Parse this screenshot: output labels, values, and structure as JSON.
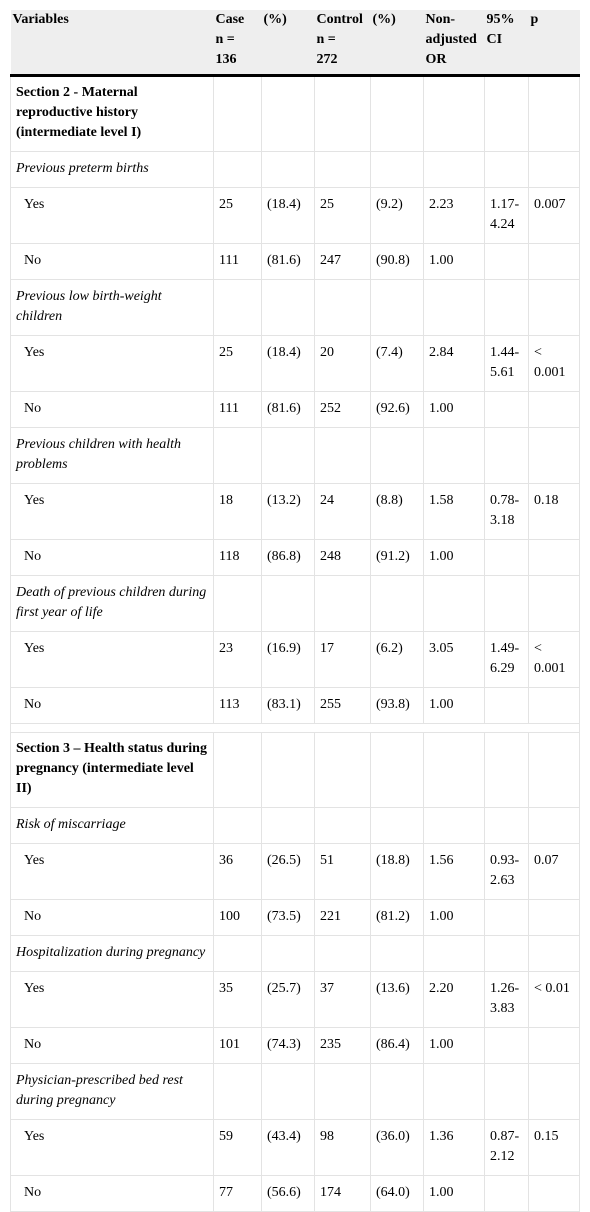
{
  "headers": [
    "Variables",
    "Case\nn =\n136",
    "(%)",
    "Control\nn =\n272",
    "(%)",
    "Non-\nadjusted\nOR",
    "95%\nCI",
    "p"
  ],
  "sections": [
    {
      "title": "Section 2 - Maternal reproductive history (intermediate level I)",
      "variables": [
        {
          "name": "Previous preterm births",
          "rows": [
            {
              "label": "Yes",
              "case": "25",
              "case_pct": "(18.4)",
              "control": "25",
              "control_pct": "(9.2)",
              "or": "2.23",
              "ci": "1.17-4.24",
              "p": "0.007"
            },
            {
              "label": "No",
              "case": "111",
              "case_pct": "(81.6)",
              "control": "247",
              "control_pct": "(90.8)",
              "or": "1.00",
              "ci": "",
              "p": ""
            }
          ]
        },
        {
          "name": "Previous low birth-weight children",
          "rows": [
            {
              "label": "Yes",
              "case": "25",
              "case_pct": "(18.4)",
              "control": "20",
              "control_pct": "(7.4)",
              "or": "2.84",
              "ci": "1.44-5.61",
              "p": "< 0.001"
            },
            {
              "label": "No",
              "case": "111",
              "case_pct": "(81.6)",
              "control": "252",
              "control_pct": "(92.6)",
              "or": "1.00",
              "ci": "",
              "p": ""
            }
          ]
        },
        {
          "name": "Previous children with health problems",
          "rows": [
            {
              "label": "Yes",
              "case": "18",
              "case_pct": "(13.2)",
              "control": "24",
              "control_pct": "(8.8)",
              "or": "1.58",
              "ci": "0.78-3.18",
              "p": "0.18"
            },
            {
              "label": "No",
              "case": "118",
              "case_pct": "(86.8)",
              "control": "248",
              "control_pct": "(91.2)",
              "or": "1.00",
              "ci": "",
              "p": ""
            }
          ]
        },
        {
          "name": "Death of previous children during first year of life",
          "rows": [
            {
              "label": "Yes",
              "case": "23",
              "case_pct": "(16.9)",
              "control": "17",
              "control_pct": "(6.2)",
              "or": "3.05",
              "ci": "1.49-6.29",
              "p": "< 0.001"
            },
            {
              "label": "No",
              "case": "113",
              "case_pct": "(83.1)",
              "control": "255",
              "control_pct": "(93.8)",
              "or": "1.00",
              "ci": "",
              "p": ""
            }
          ]
        }
      ]
    },
    {
      "title": "Section 3 – Health status during pregnancy (intermediate level II)",
      "variables": [
        {
          "name": "Risk of miscarriage",
          "rows": [
            {
              "label": "Yes",
              "case": "36",
              "case_pct": "(26.5)",
              "control": "51",
              "control_pct": "(18.8)",
              "or": "1.56",
              "ci": "0.93-2.63",
              "p": "0.07"
            },
            {
              "label": "No",
              "case": "100",
              "case_pct": "(73.5)",
              "control": "221",
              "control_pct": "(81.2)",
              "or": "1.00",
              "ci": "",
              "p": ""
            }
          ]
        },
        {
          "name": "Hospitalization during pregnancy",
          "rows": [
            {
              "label": "Yes",
              "case": "35",
              "case_pct": "(25.7)",
              "control": "37",
              "control_pct": "(13.6)",
              "or": "2.20",
              "ci": "1.26-3.83",
              "p": "< 0.01"
            },
            {
              "label": "No",
              "case": "101",
              "case_pct": "(74.3)",
              "control": "235",
              "control_pct": "(86.4)",
              "or": "1.00",
              "ci": "",
              "p": ""
            }
          ]
        },
        {
          "name": "Physician-prescribed bed rest during pregnancy",
          "rows": [
            {
              "label": "Yes",
              "case": "59",
              "case_pct": "(43.4)",
              "control": "98",
              "control_pct": "(36.0)",
              "or": "1.36",
              "ci": "0.87-2.12",
              "p": "0.15"
            },
            {
              "label": "No",
              "case": "77",
              "case_pct": "(56.6)",
              "control": "174",
              "control_pct": "(64.0)",
              "or": "1.00",
              "ci": "",
              "p": ""
            }
          ]
        }
      ]
    }
  ]
}
